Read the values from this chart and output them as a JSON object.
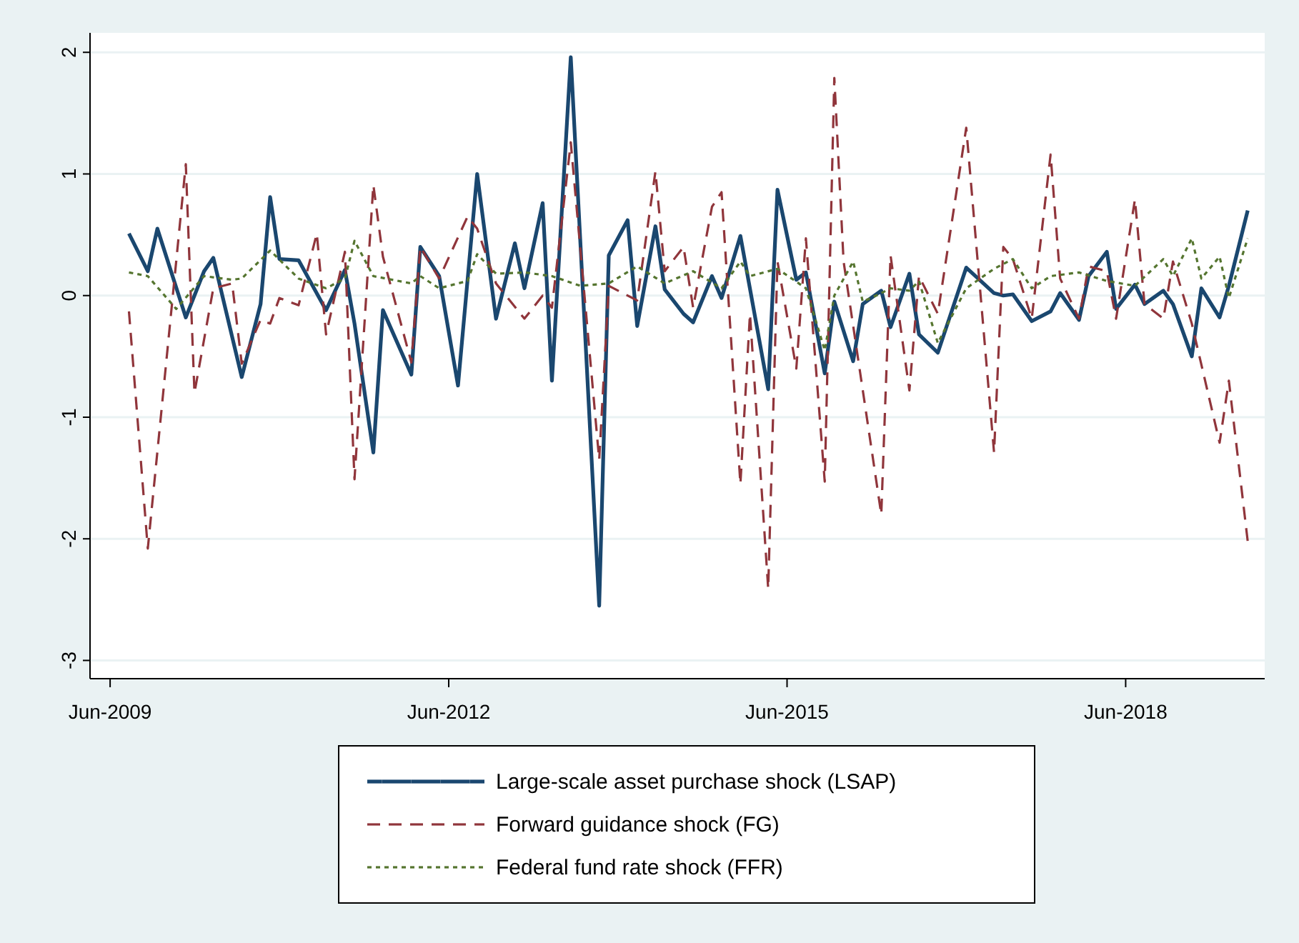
{
  "chart_data": {
    "type": "line",
    "xlim": [
      "2009-03-28",
      "2019-08-25"
    ],
    "ylim": [
      -3.15,
      2.16
    ],
    "xticks": [
      {
        "value": "2009-06",
        "label": "Jun-2009"
      },
      {
        "value": "2012-06",
        "label": "Jun-2012"
      },
      {
        "value": "2015-06",
        "label": "Jun-2015"
      },
      {
        "value": "2018-06",
        "label": "Jun-2018"
      }
    ],
    "yticks": [
      -3,
      -2,
      -1,
      0,
      1,
      2
    ],
    "grid": "y",
    "legend": "bottom",
    "series": [
      {
        "name": "Large-scale asset purchase shock (LSAP)",
        "color": "#1a476f",
        "line_style": "solid",
        "x": [
          "2009-08",
          "2009-10",
          "2009-11",
          "2010-02",
          "2010-04",
          "2010-05",
          "2010-08",
          "2010-10",
          "2010-11",
          "2010-12",
          "2011-02",
          "2011-05",
          "2011-07",
          "2011-08",
          "2011-10",
          "2011-11",
          "2012-02",
          "2012-03",
          "2012-05",
          "2012-07",
          "2012-09",
          "2012-11",
          "2013-01",
          "2013-02",
          "2013-04",
          "2013-05",
          "2013-07",
          "2013-10",
          "2013-11",
          "2014-01",
          "2014-02",
          "2014-04",
          "2014-05",
          "2014-07",
          "2014-08",
          "2014-10",
          "2014-11",
          "2015-01",
          "2015-04",
          "2015-05",
          "2015-07",
          "2015-08",
          "2015-10",
          "2015-11",
          "2016-01",
          "2016-02",
          "2016-04",
          "2016-05",
          "2016-07",
          "2016-08",
          "2016-10",
          "2017-01",
          "2017-04",
          "2017-05",
          "2017-06",
          "2017-08",
          "2017-10",
          "2017-11",
          "2018-01",
          "2018-02",
          "2018-04",
          "2018-05",
          "2018-07",
          "2018-08",
          "2018-10",
          "2018-11",
          "2019-01",
          "2019-02",
          "2019-04",
          "2019-05",
          "2019-07"
        ],
        "values": [
          0.51,
          0.2,
          0.55,
          -0.18,
          0.2,
          0.31,
          -0.67,
          -0.07,
          0.81,
          0.3,
          0.29,
          -0.12,
          0.21,
          -0.23,
          -1.29,
          -0.12,
          -0.65,
          0.4,
          0.16,
          -0.74,
          1.0,
          -0.19,
          0.43,
          0.06,
          0.76,
          -0.7,
          1.96,
          -2.55,
          0.33,
          0.62,
          -0.25,
          0.57,
          0.05,
          -0.15,
          -0.22,
          0.16,
          -0.02,
          0.49,
          -0.77,
          0.87,
          0.13,
          0.19,
          -0.64,
          -0.05,
          -0.54,
          -0.07,
          0.04,
          -0.26,
          0.18,
          -0.32,
          -0.47,
          0.23,
          0.02,
          0.0,
          0.01,
          -0.21,
          -0.13,
          0.02,
          -0.2,
          0.16,
          0.36,
          -0.11,
          0.09,
          -0.07,
          0.04,
          -0.07,
          -0.5,
          0.06,
          -0.18,
          0.08,
          0.7
        ]
      },
      {
        "name": "Forward guidance shock (FG)",
        "color": "#90353b",
        "line_style": "dashed",
        "x": [
          "2009-08",
          "2009-10",
          "2010-02",
          "2010-03",
          "2010-05",
          "2010-07",
          "2010-08",
          "2010-10",
          "2010-11",
          "2010-12",
          "2011-02",
          "2011-04",
          "2011-05",
          "2011-07",
          "2011-08",
          "2011-10",
          "2011-11",
          "2012-02",
          "2012-03",
          "2012-05",
          "2012-08",
          "2012-09",
          "2012-11",
          "2013-02",
          "2013-04",
          "2013-05",
          "2013-07",
          "2013-10",
          "2013-11",
          "2014-02",
          "2014-04",
          "2014-05",
          "2014-07",
          "2014-08",
          "2014-10",
          "2014-11",
          "2015-01",
          "2015-02",
          "2015-04",
          "2015-05",
          "2015-07",
          "2015-08",
          "2015-10",
          "2015-11",
          "2015-12",
          "2016-04",
          "2016-05",
          "2016-07",
          "2016-08",
          "2016-10",
          "2017-01",
          "2017-04",
          "2017-05",
          "2017-06",
          "2017-08",
          "2017-10",
          "2017-11",
          "2018-01",
          "2018-02",
          "2018-04",
          "2018-05",
          "2018-07",
          "2018-08",
          "2018-10",
          "2018-11",
          "2019-01",
          "2019-04",
          "2019-05",
          "2019-07"
        ],
        "values": [
          -0.13,
          -2.08,
          1.08,
          -0.8,
          0.06,
          0.1,
          -0.56,
          -0.2,
          -0.23,
          -0.02,
          -0.08,
          0.51,
          -0.32,
          0.36,
          -1.51,
          0.91,
          0.32,
          -0.55,
          0.4,
          0.14,
          0.65,
          0.55,
          0.1,
          -0.19,
          0.0,
          -0.1,
          1.26,
          -1.35,
          0.08,
          -0.04,
          1.02,
          0.2,
          0.4,
          -0.1,
          0.73,
          0.85,
          -1.55,
          -0.15,
          -2.41,
          0.28,
          -0.6,
          0.47,
          -1.53,
          1.79,
          0.28,
          -1.8,
          0.33,
          -0.78,
          0.16,
          -0.15,
          1.38,
          -1.29,
          0.4,
          0.3,
          -0.19,
          1.16,
          0.14,
          -0.19,
          0.24,
          0.2,
          -0.19,
          0.79,
          -0.07,
          -0.19,
          0.28,
          -0.23,
          -1.21,
          -0.7,
          -2.02
        ]
      },
      {
        "name": "Federal fund rate shock (FFR)",
        "color": "#55752f",
        "line_style": "dotted",
        "x": [
          "2009-08",
          "2009-10",
          "2010-01",
          "2010-04",
          "2010-07",
          "2010-08",
          "2010-11",
          "2011-02",
          "2011-05",
          "2011-07",
          "2011-08",
          "2011-10",
          "2012-02",
          "2012-03",
          "2012-05",
          "2012-08",
          "2012-09",
          "2012-11",
          "2013-02",
          "2013-05",
          "2013-08",
          "2013-11",
          "2014-02",
          "2014-05",
          "2014-08",
          "2014-11",
          "2015-01",
          "2015-02",
          "2015-05",
          "2015-08",
          "2015-10",
          "2015-11",
          "2016-01",
          "2016-02",
          "2016-04",
          "2016-05",
          "2016-07",
          "2016-08",
          "2016-10",
          "2017-01",
          "2017-04",
          "2017-06",
          "2017-08",
          "2017-10",
          "2018-01",
          "2018-04",
          "2018-07",
          "2018-10",
          "2018-11",
          "2019-01",
          "2019-02",
          "2019-04",
          "2019-05",
          "2019-07"
        ],
        "values": [
          0.19,
          0.16,
          -0.11,
          0.16,
          0.13,
          0.14,
          0.37,
          0.14,
          0.06,
          0.14,
          0.45,
          0.16,
          0.1,
          0.16,
          0.06,
          0.12,
          0.34,
          0.18,
          0.19,
          0.16,
          0.08,
          0.1,
          0.24,
          0.1,
          0.2,
          0.06,
          0.28,
          0.16,
          0.22,
          0.06,
          -0.45,
          0.0,
          0.28,
          -0.05,
          0.02,
          0.06,
          0.04,
          0.12,
          -0.39,
          0.06,
          0.22,
          0.3,
          0.06,
          0.16,
          0.19,
          0.12,
          0.08,
          0.3,
          0.16,
          0.47,
          0.14,
          0.32,
          -0.02,
          0.47
        ]
      }
    ]
  }
}
